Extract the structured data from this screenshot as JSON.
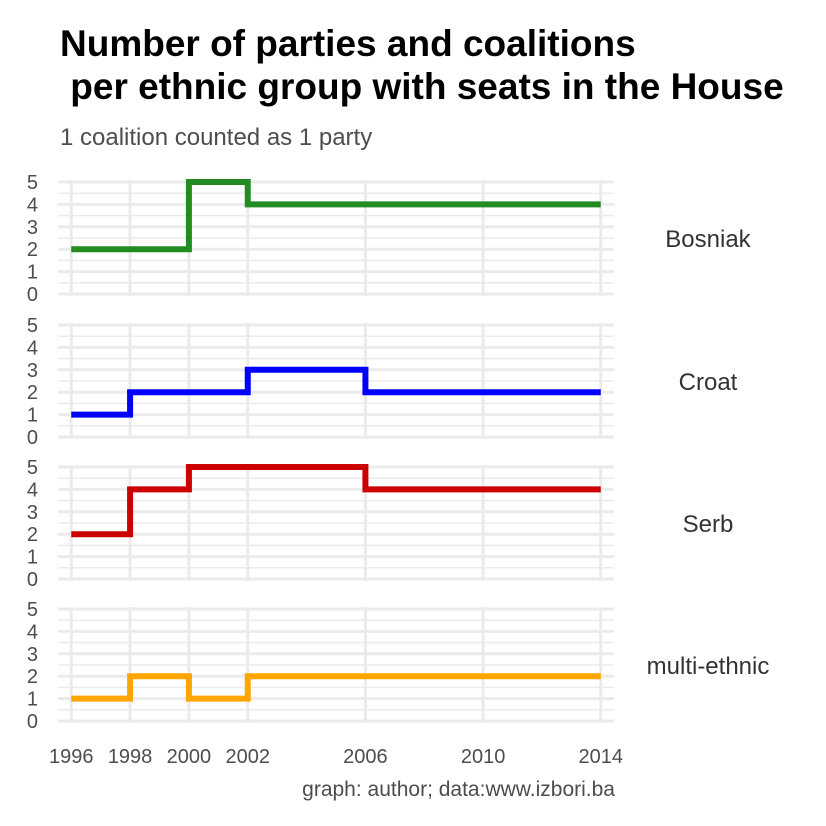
{
  "chart_data": {
    "type": "line",
    "step": "hv",
    "title": "Number of parties and coalitions\n per ethnic group with seats in the House",
    "subtitle": "1 coalition counted as 1 party",
    "caption": "graph: author; data:www.izbori.ba",
    "x": [
      1996,
      1998,
      2000,
      2002,
      2006,
      2010,
      2014
    ],
    "x_ticks": [
      "1996",
      "1998",
      "2000",
      "2002",
      "2006",
      "2010",
      "2014"
    ],
    "ylim": [
      0,
      5
    ],
    "y_ticks": [
      "0",
      "1",
      "2",
      "3",
      "4",
      "5"
    ],
    "grid": true,
    "legend": "none",
    "series": [
      {
        "name": "Bosniak",
        "color": "#228B22",
        "values": [
          2,
          2,
          5,
          4,
          4,
          4,
          4
        ]
      },
      {
        "name": "Croat",
        "color": "#0000FF",
        "values": [
          1,
          2,
          2,
          3,
          2,
          2,
          2
        ]
      },
      {
        "name": "Serb",
        "color": "#CC0000",
        "values": [
          2,
          4,
          5,
          5,
          4,
          4,
          4
        ]
      },
      {
        "name": "multi-ethnic",
        "color": "#FFA500",
        "values": [
          1,
          2,
          1,
          2,
          2,
          2,
          2
        ]
      }
    ]
  }
}
